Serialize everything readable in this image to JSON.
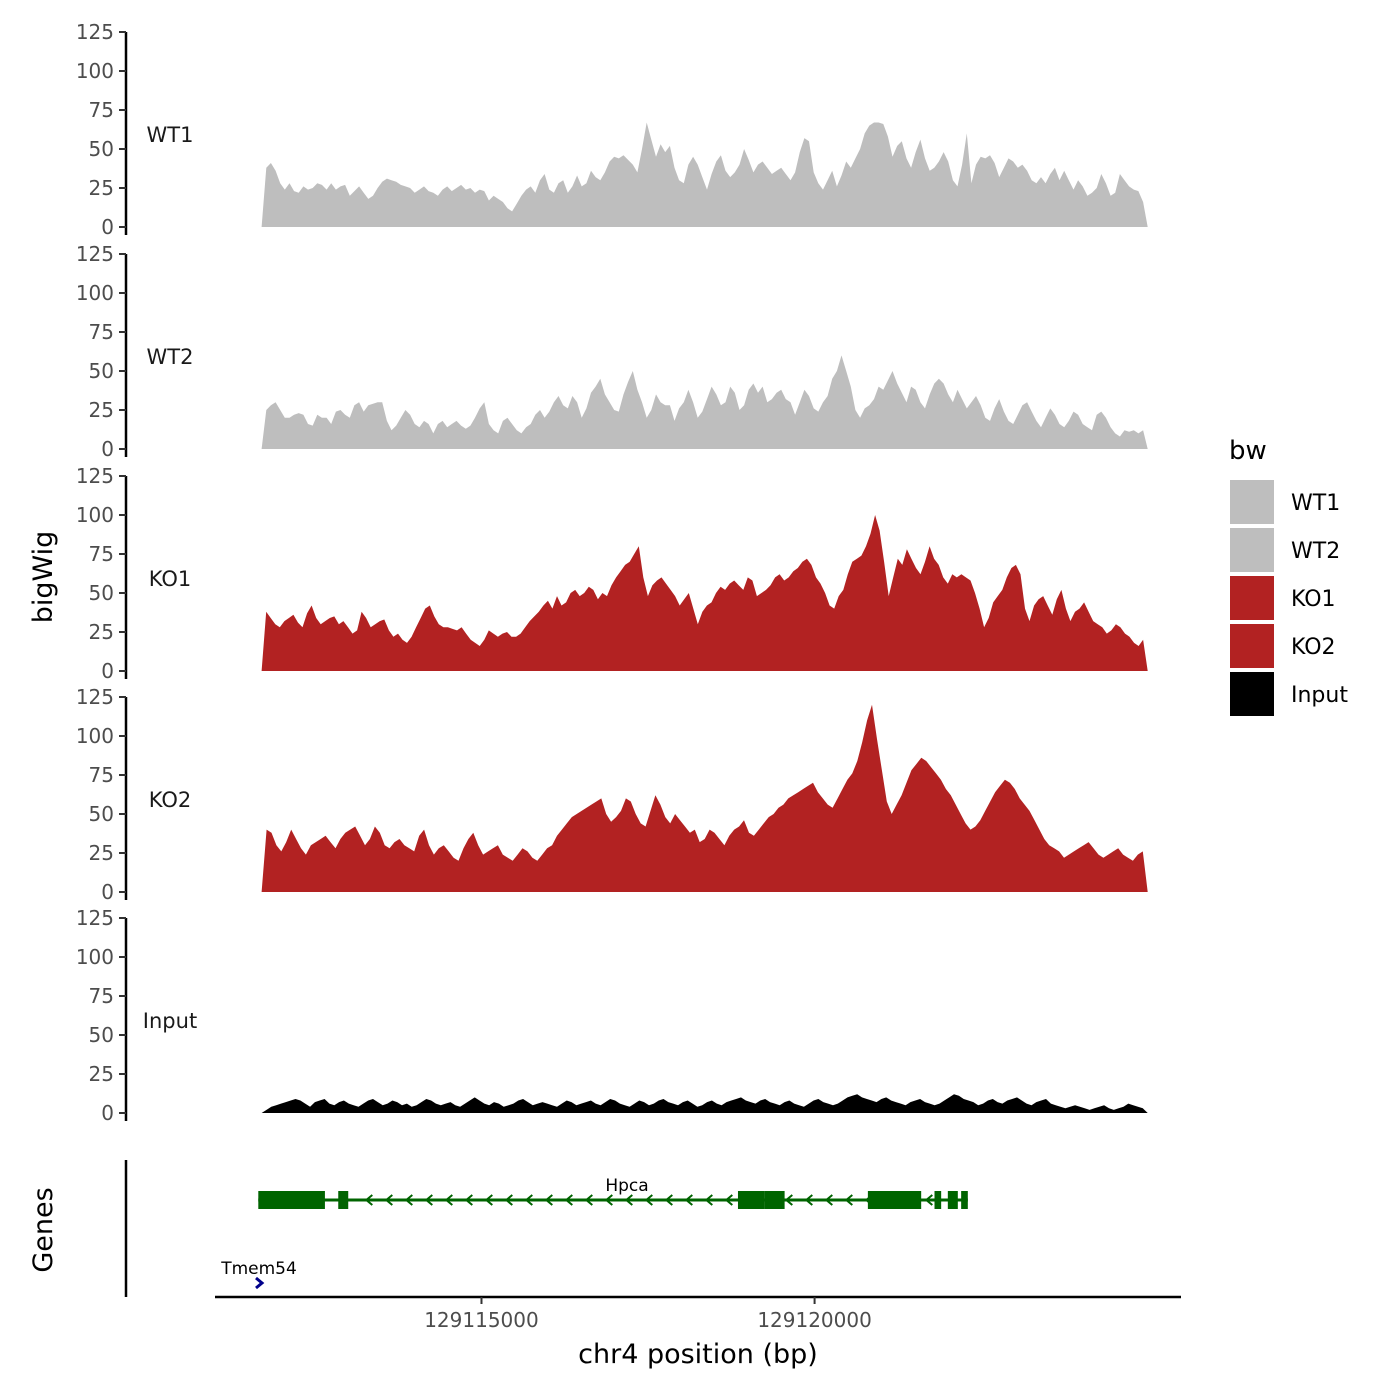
{
  "chart_data": {
    "type": "area",
    "title": "",
    "xlabel": "chr4 position (bp)",
    "ylabel": "bigWig",
    "genes_label": "Genes",
    "xlim": [
      129111000,
      129125500
    ],
    "x_ticks": [
      129115000,
      129120000
    ],
    "x_tick_labels": [
      "129115000",
      "129120000"
    ],
    "ylim": [
      0,
      125
    ],
    "y_ticks": [
      0,
      25,
      50,
      75,
      100,
      125
    ],
    "y_tick_labels": [
      "0",
      "25",
      "50",
      "75",
      "100",
      "125"
    ],
    "legend": {
      "title": "bw",
      "position": "right",
      "entries": [
        {
          "name": "WT1",
          "color": "#bebebe"
        },
        {
          "name": "WT2",
          "color": "#bebebe"
        },
        {
          "name": "KO1",
          "color": "#b22222"
        },
        {
          "name": "KO2",
          "color": "#b22222"
        },
        {
          "name": "Input",
          "color": "#000000"
        }
      ]
    },
    "x_start": 129111700,
    "x_end": 129125000,
    "series": [
      {
        "name": "WT1",
        "color": "#bebebe",
        "values": [
          0,
          38,
          41,
          36,
          28,
          24,
          28,
          23,
          22,
          26,
          24,
          25,
          28,
          27,
          24,
          28,
          24,
          26,
          27,
          20,
          23,
          26,
          22,
          18,
          20,
          25,
          29,
          31,
          30,
          29,
          27,
          26,
          25,
          22,
          24,
          26,
          23,
          22,
          20,
          24,
          26,
          23,
          25,
          27,
          24,
          25,
          22,
          24,
          23,
          17,
          20,
          18,
          16,
          12,
          10,
          15,
          20,
          24,
          26,
          22,
          30,
          34,
          24,
          22,
          28,
          30,
          22,
          26,
          33,
          26,
          28,
          36,
          32,
          30,
          35,
          42,
          45,
          44,
          46,
          43,
          40,
          35,
          50,
          67,
          56,
          45,
          53,
          48,
          52,
          38,
          30,
          28,
          40,
          45,
          40,
          32,
          24,
          34,
          42,
          46,
          36,
          32,
          35,
          40,
          50,
          43,
          35,
          40,
          42,
          38,
          34,
          36,
          38,
          34,
          30,
          35,
          48,
          57,
          55,
          35,
          28,
          24,
          30,
          36,
          26,
          33,
          42,
          38,
          44,
          50,
          60,
          65,
          67,
          67,
          66,
          58,
          45,
          52,
          55,
          44,
          38,
          48,
          56,
          44,
          36,
          38,
          42,
          48,
          42,
          30,
          26,
          40,
          60,
          28,
          40,
          45,
          44,
          46,
          41,
          32,
          38,
          44,
          42,
          38,
          40,
          36,
          30,
          28,
          32,
          28,
          34,
          38,
          30,
          36,
          30,
          24,
          30,
          26,
          20,
          22,
          25,
          34,
          28,
          20,
          22,
          34,
          30,
          26,
          24,
          23,
          16,
          0
        ]
      },
      {
        "name": "WT2",
        "color": "#bebebe",
        "values": [
          0,
          25,
          28,
          30,
          25,
          20,
          20,
          22,
          23,
          22,
          16,
          15,
          22,
          20,
          20,
          16,
          24,
          25,
          22,
          20,
          28,
          30,
          24,
          28,
          29,
          30,
          30,
          18,
          12,
          15,
          20,
          25,
          22,
          16,
          14,
          18,
          16,
          10,
          16,
          18,
          14,
          16,
          18,
          15,
          13,
          15,
          20,
          26,
          30,
          16,
          12,
          10,
          18,
          20,
          16,
          12,
          10,
          14,
          16,
          22,
          25,
          20,
          24,
          30,
          34,
          28,
          26,
          34,
          30,
          20,
          26,
          36,
          40,
          45,
          35,
          30,
          25,
          24,
          35,
          43,
          50,
          38,
          30,
          20,
          25,
          35,
          30,
          28,
          28,
          18,
          26,
          30,
          38,
          30,
          20,
          24,
          32,
          40,
          35,
          28,
          30,
          40,
          36,
          25,
          28,
          38,
          42,
          36,
          40,
          30,
          32,
          36,
          38,
          32,
          30,
          22,
          30,
          38,
          34,
          26,
          24,
          30,
          34,
          45,
          50,
          60,
          50,
          40,
          25,
          20,
          26,
          28,
          32,
          40,
          38,
          44,
          50,
          42,
          36,
          30,
          40,
          38,
          30,
          26,
          35,
          42,
          45,
          42,
          35,
          30,
          38,
          32,
          26,
          30,
          34,
          28,
          20,
          18,
          26,
          32,
          24,
          18,
          16,
          22,
          28,
          30,
          24,
          18,
          14,
          20,
          26,
          22,
          16,
          14,
          18,
          24,
          22,
          16,
          14,
          12,
          22,
          24,
          20,
          14,
          10,
          8,
          12,
          11,
          12,
          10,
          12,
          0
        ]
      },
      {
        "name": "KO1",
        "color": "#b22222",
        "values": [
          0,
          38,
          34,
          30,
          28,
          32,
          34,
          36,
          31,
          28,
          37,
          42,
          34,
          30,
          32,
          34,
          35,
          30,
          32,
          28,
          24,
          26,
          38,
          34,
          28,
          30,
          32,
          33,
          26,
          22,
          24,
          20,
          18,
          22,
          28,
          34,
          40,
          42,
          35,
          30,
          28,
          28,
          27,
          26,
          28,
          24,
          20,
          18,
          16,
          20,
          26,
          24,
          22,
          24,
          25,
          22,
          22,
          24,
          28,
          32,
          35,
          38,
          42,
          45,
          40,
          48,
          42,
          44,
          50,
          52,
          48,
          50,
          54,
          52,
          46,
          50,
          48,
          55,
          60,
          64,
          68,
          70,
          75,
          80,
          60,
          48,
          55,
          58,
          60,
          56,
          52,
          48,
          42,
          46,
          50,
          40,
          30,
          38,
          42,
          44,
          50,
          54,
          52,
          56,
          58,
          55,
          52,
          60,
          58,
          48,
          50,
          52,
          55,
          60,
          62,
          58,
          60,
          64,
          66,
          70,
          72,
          68,
          60,
          56,
          50,
          42,
          40,
          48,
          52,
          62,
          70,
          72,
          74,
          80,
          88,
          100,
          90,
          70,
          48,
          60,
          72,
          68,
          78,
          72,
          66,
          62,
          70,
          80,
          72,
          68,
          60,
          56,
          62,
          60,
          62,
          60,
          58,
          50,
          40,
          28,
          34,
          44,
          48,
          52,
          60,
          66,
          68,
          62,
          40,
          32,
          42,
          46,
          48,
          42,
          36,
          46,
          52,
          40,
          32,
          38,
          40,
          44,
          38,
          32,
          30,
          28,
          24,
          26,
          30,
          28,
          24,
          22,
          18,
          16,
          20,
          0
        ]
      },
      {
        "name": "KO2",
        "color": "#b22222",
        "values": [
          0,
          40,
          38,
          30,
          26,
          32,
          40,
          34,
          28,
          24,
          30,
          32,
          34,
          36,
          32,
          28,
          34,
          38,
          40,
          42,
          36,
          30,
          34,
          42,
          38,
          30,
          28,
          32,
          34,
          30,
          28,
          26,
          36,
          40,
          30,
          24,
          28,
          30,
          26,
          22,
          20,
          28,
          34,
          38,
          30,
          24,
          26,
          28,
          30,
          24,
          22,
          20,
          24,
          28,
          26,
          22,
          20,
          24,
          28,
          30,
          36,
          40,
          44,
          48,
          50,
          52,
          54,
          56,
          58,
          60,
          50,
          45,
          48,
          52,
          60,
          58,
          50,
          44,
          42,
          52,
          62,
          56,
          48,
          44,
          50,
          46,
          42,
          38,
          40,
          32,
          34,
          40,
          38,
          34,
          30,
          36,
          40,
          42,
          46,
          38,
          36,
          40,
          44,
          48,
          50,
          54,
          56,
          60,
          62,
          64,
          66,
          68,
          70,
          64,
          60,
          56,
          54,
          60,
          66,
          72,
          76,
          84,
          96,
          110,
          120,
          98,
          78,
          58,
          50,
          56,
          62,
          70,
          78,
          82,
          86,
          84,
          80,
          76,
          72,
          66,
          62,
          56,
          50,
          44,
          40,
          42,
          46,
          52,
          58,
          64,
          68,
          72,
          70,
          66,
          60,
          56,
          52,
          46,
          40,
          34,
          30,
          28,
          26,
          22,
          24,
          26,
          28,
          30,
          32,
          28,
          24,
          22,
          24,
          26,
          28,
          24,
          22,
          20,
          24,
          26,
          0
        ]
      },
      {
        "name": "Input",
        "color": "#000000",
        "values": [
          0,
          2,
          4,
          5,
          6,
          7,
          8,
          9,
          8,
          6,
          4,
          7,
          8,
          9,
          6,
          5,
          7,
          8,
          6,
          5,
          4,
          6,
          8,
          9,
          7,
          5,
          6,
          8,
          7,
          5,
          6,
          4,
          5,
          7,
          9,
          8,
          6,
          5,
          6,
          7,
          5,
          4,
          6,
          8,
          10,
          8,
          6,
          5,
          7,
          6,
          4,
          5,
          6,
          8,
          9,
          7,
          5,
          6,
          7,
          6,
          5,
          4,
          6,
          8,
          7,
          5,
          6,
          7,
          8,
          6,
          5,
          7,
          9,
          8,
          6,
          5,
          4,
          6,
          8,
          7,
          5,
          6,
          8,
          9,
          7,
          6,
          5,
          7,
          8,
          6,
          4,
          5,
          7,
          8,
          6,
          5,
          7,
          8,
          9,
          10,
          8,
          7,
          6,
          8,
          9,
          7,
          6,
          5,
          7,
          8,
          6,
          5,
          4,
          6,
          8,
          9,
          7,
          6,
          5,
          6,
          8,
          10,
          11,
          12,
          10,
          9,
          8,
          7,
          9,
          10,
          8,
          7,
          6,
          5,
          7,
          8,
          9,
          7,
          6,
          5,
          6,
          8,
          10,
          12,
          11,
          9,
          8,
          7,
          5,
          6,
          8,
          9,
          7,
          6,
          8,
          9,
          10,
          8,
          6,
          5,
          7,
          8,
          9,
          6,
          5,
          4,
          3,
          4,
          5,
          4,
          3,
          2,
          3,
          4,
          5,
          3,
          2,
          3,
          4,
          6,
          5,
          4,
          3,
          0
        ]
      }
    ],
    "genes": [
      {
        "name": "Hpca",
        "color": "#006400",
        "strand": "-",
        "start": 129111650,
        "end": 129122300,
        "exons": [
          [
            129111650,
            129112650
          ],
          [
            129112850,
            129113000
          ],
          [
            129118850,
            129119250
          ],
          [
            129119250,
            129119550
          ],
          [
            129120800,
            129121600
          ],
          [
            129121800,
            129121900
          ],
          [
            129122000,
            129122150
          ],
          [
            129122200,
            129122300
          ]
        ]
      },
      {
        "name": "Tmem54",
        "color": "#00008b",
        "strand": "+",
        "start": 129111700,
        "end": 129111780,
        "exons": []
      }
    ]
  }
}
